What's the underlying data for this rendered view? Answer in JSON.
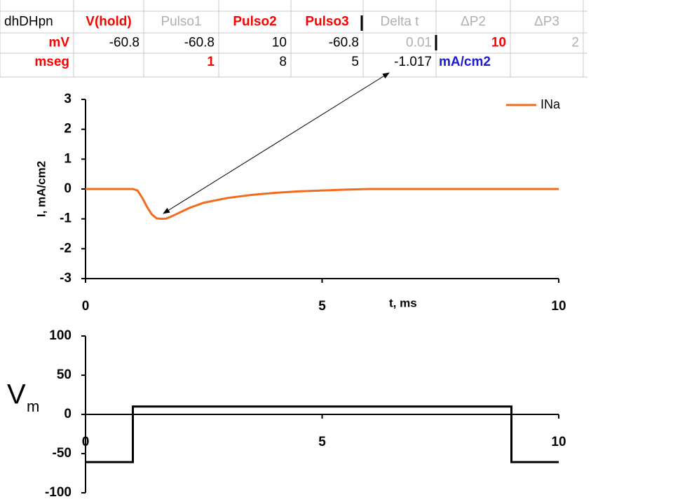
{
  "table": {
    "rows": [
      [
        "dhDHpn",
        "V(hold)",
        "Pulso1",
        "Pulso2",
        "Pulso3",
        "Delta t",
        "ΔP2",
        "ΔP3"
      ],
      [
        "mV",
        "-60.8",
        "-60.8",
        "10",
        "-60.8",
        "0.01",
        "10",
        "2"
      ],
      [
        "mseg",
        null,
        "1",
        "8",
        "5",
        "-1.017",
        "mA/cm2",
        null
      ]
    ]
  },
  "chart_data": [
    {
      "type": "line",
      "x_label": "t, ms",
      "y_label": "I, mA/cm2",
      "x": [
        0,
        1,
        1.1,
        1.2,
        1.3,
        1.4,
        1.5,
        1.6,
        1.7,
        1.8,
        2,
        2.2,
        2.5,
        3,
        3.5,
        4,
        4.5,
        5,
        5.5,
        6,
        7,
        8,
        9,
        10
      ],
      "series": [
        {
          "name": "INa",
          "color": "#f26b1d",
          "values": [
            0,
            0,
            -0.05,
            -0.3,
            -0.6,
            -0.85,
            -0.98,
            -1.0,
            -0.99,
            -0.93,
            -0.78,
            -0.63,
            -0.46,
            -0.3,
            -0.2,
            -0.13,
            -0.08,
            -0.05,
            -0.02,
            0,
            0,
            0,
            0,
            0
          ]
        }
      ],
      "xlim": [
        0,
        10
      ],
      "xticks": [
        0,
        5,
        10
      ],
      "ylim": [
        -3,
        3
      ],
      "yticks": [
        -3,
        -2,
        -1,
        0,
        1,
        2,
        3
      ],
      "legend": "top-right"
    },
    {
      "type": "line",
      "y_label": "V",
      "y_label_sub": "m",
      "x": [
        0,
        1,
        1,
        9,
        9,
        10
      ],
      "series": [
        {
          "color": "#000000",
          "values": [
            -60.8,
            -60.8,
            10,
            10,
            -60.8,
            -60.8
          ]
        }
      ],
      "xlim": [
        0,
        10
      ],
      "xticks": [
        0,
        5,
        10
      ],
      "ylim": [
        -100,
        100
      ],
      "yticks": [
        -100,
        -50,
        0,
        50,
        100
      ]
    }
  ]
}
